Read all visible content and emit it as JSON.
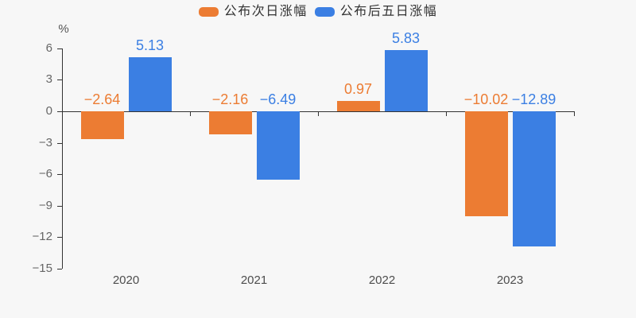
{
  "chart_data": {
    "type": "bar",
    "title": "",
    "categories": [
      "2020",
      "2021",
      "2022",
      "2023"
    ],
    "series": [
      {
        "name": "公布次日涨幅",
        "color": "#ec7c33",
        "values": [
          -2.64,
          -2.16,
          0.97,
          -10.02
        ]
      },
      {
        "name": "公布后五日涨幅",
        "color": "#3b7fe3",
        "values": [
          5.13,
          -6.49,
          5.83,
          -12.89
        ]
      }
    ],
    "y_unit": "%",
    "yticks": [
      6,
      3,
      0,
      -3,
      -6,
      -9,
      -12,
      -15
    ],
    "ylim": [
      -15,
      6
    ],
    "grid": false,
    "legend_position": "top-center",
    "value_labels": true,
    "zero_axis_line": true
  },
  "colors": {
    "background": "#f7f7f7",
    "axis": "#333333",
    "y_tick_label": "#666666",
    "x_tick_label": "#4d4d4d",
    "legend_text": "#333333"
  }
}
